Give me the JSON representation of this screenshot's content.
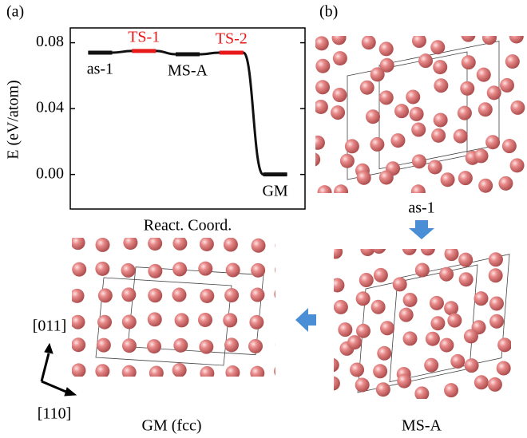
{
  "panel_a": "(a)",
  "panel_b": "(b)",
  "chart_data": {
    "type": "line",
    "ylabel": "E (eV/atom)",
    "xlabel": "React. Coord.",
    "categories": [
      "as-1",
      "TS-1",
      "MS-A",
      "TS-2",
      "GM"
    ],
    "values": [
      0.074,
      0.075,
      0.073,
      0.074,
      0
    ],
    "label_colors": [
      "#000000",
      "#e8191a",
      "#000000",
      "#e8191a",
      "#000000"
    ],
    "color": "#111111",
    "ylim": [
      -0.021,
      0.089
    ],
    "yticks": [
      {
        "value": 0,
        "label": "0.00"
      },
      {
        "value": 0.04,
        "label": "0.04"
      },
      {
        "value": 0.08,
        "label": "0.08"
      }
    ]
  },
  "structures": {
    "top": "as-1",
    "right": "MS-A",
    "left": "GM (fcc)"
  },
  "directions": {
    "up": "[011]",
    "down": "[110]"
  }
}
